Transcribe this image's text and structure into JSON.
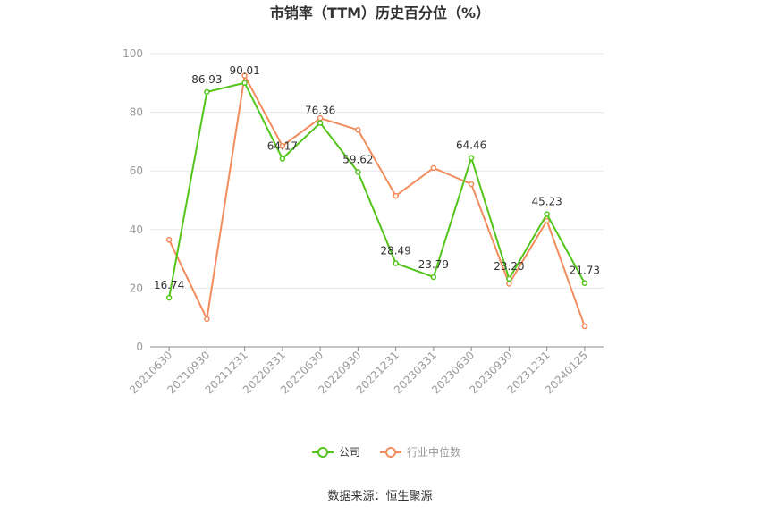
{
  "chart_data": {
    "type": "line",
    "title": "市销率（TTM）历史百分位（%）",
    "xlabel": "",
    "ylabel": "",
    "ylim": [
      0,
      100
    ],
    "yticks": [
      0,
      20,
      40,
      60,
      80,
      100
    ],
    "grid": true,
    "legend_position": "bottom",
    "categories": [
      "20210630",
      "20210930",
      "20211231",
      "20220331",
      "20220630",
      "20220930",
      "20221231",
      "20230331",
      "20230630",
      "20230930",
      "20231231",
      "20240125"
    ],
    "series": [
      {
        "name": "公司",
        "color": "#52c41a",
        "values": [
          16.74,
          86.93,
          90.01,
          64.17,
          76.36,
          59.62,
          28.49,
          23.79,
          64.46,
          23.2,
          45.23,
          21.73
        ],
        "labels": [
          "16.74",
          "86.93",
          "90.01",
          "64.17",
          "76.36",
          "59.62",
          "28.49",
          "23.79",
          "64.46",
          "23.20",
          "45.23",
          "21.73"
        ]
      },
      {
        "name": "行业中位数",
        "color": "#f28c5c",
        "values": [
          36.5,
          9.5,
          92.5,
          68.5,
          78.0,
          74.0,
          51.5,
          61.0,
          55.5,
          21.5,
          43.0,
          7.0
        ]
      }
    ]
  },
  "footer": {
    "source": "数据来源：恒生聚源"
  }
}
